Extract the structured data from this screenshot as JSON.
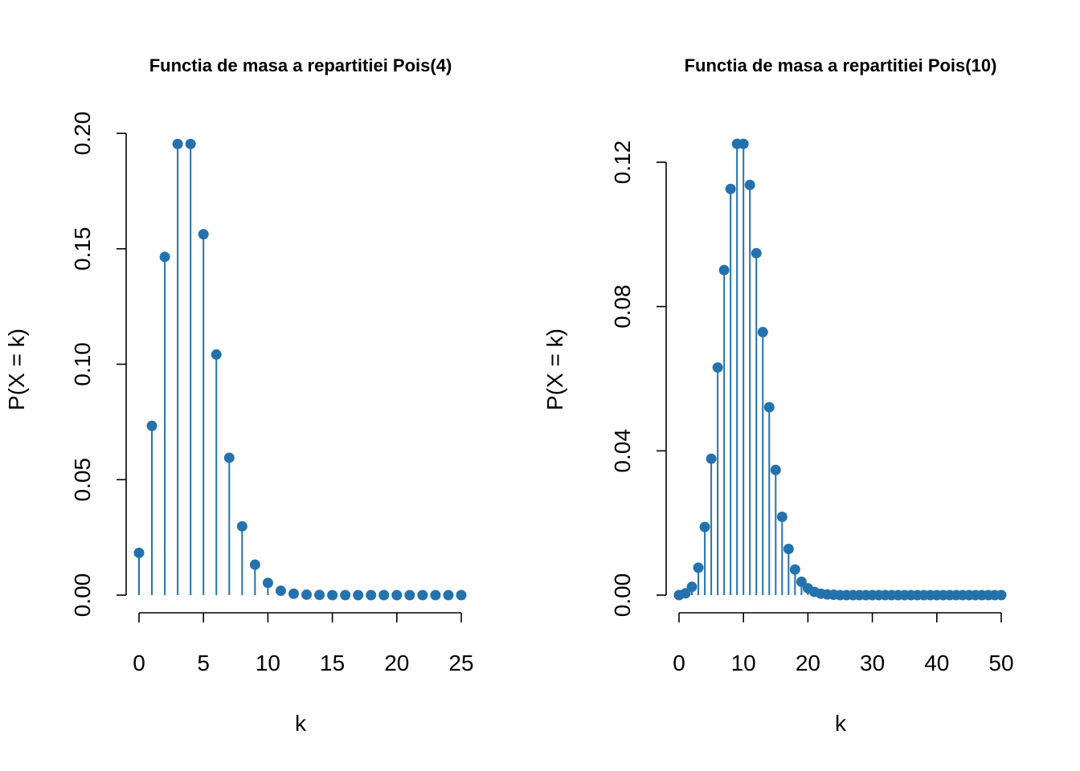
{
  "colors": {
    "series": "#2472ad",
    "axis": "#000000"
  },
  "chart_data": [
    {
      "type": "lollipop",
      "title": "Functia de masa a repartitiei Pois(4)",
      "xlabel": "k",
      "ylabel": "P(X = k)",
      "lambda": 4,
      "xlim": [
        0,
        25
      ],
      "ylim": [
        0,
        0.2
      ],
      "xticks": [
        "0",
        "5",
        "10",
        "15",
        "20",
        "25"
      ],
      "yticks": [
        "0.00",
        "0.05",
        "0.10",
        "0.15",
        "0.20"
      ],
      "x": [
        0,
        1,
        2,
        3,
        4,
        5,
        6,
        7,
        8,
        9,
        10,
        11,
        12,
        13,
        14,
        15,
        16,
        17,
        18,
        19,
        20,
        21,
        22,
        23,
        24,
        25
      ],
      "values": [
        0.0183,
        0.0733,
        0.1465,
        0.1954,
        0.1954,
        0.1563,
        0.1042,
        0.0595,
        0.0298,
        0.0132,
        0.0053,
        0.0019,
        0.0006,
        0.0002,
        0.0001,
        0,
        0,
        0,
        0,
        0,
        0,
        0,
        0,
        0,
        0,
        0
      ]
    },
    {
      "type": "lollipop",
      "title": "Functia de masa a repartitiei Pois(10)",
      "xlabel": "k",
      "ylabel": "P(X = k)",
      "lambda": 10,
      "xlim": [
        0,
        50
      ],
      "ylim": [
        0,
        0.12
      ],
      "xticks": [
        "0",
        "10",
        "20",
        "30",
        "40",
        "50"
      ],
      "yticks": [
        "0.00",
        "0.04",
        "0.08",
        "0.12"
      ],
      "x": [
        0,
        1,
        2,
        3,
        4,
        5,
        6,
        7,
        8,
        9,
        10,
        11,
        12,
        13,
        14,
        15,
        16,
        17,
        18,
        19,
        20,
        21,
        22,
        23,
        24,
        25,
        26,
        27,
        28,
        29,
        30,
        31,
        32,
        33,
        34,
        35,
        36,
        37,
        38,
        39,
        40,
        41,
        42,
        43,
        44,
        45,
        46,
        47,
        48,
        49,
        50
      ],
      "values": [
        0.0,
        0.0005,
        0.0023,
        0.0076,
        0.0189,
        0.0378,
        0.0631,
        0.0901,
        0.1126,
        0.1251,
        0.1251,
        0.1137,
        0.0948,
        0.0729,
        0.0521,
        0.0347,
        0.0217,
        0.0128,
        0.0071,
        0.0037,
        0.0019,
        0.0009,
        0.0004,
        0.0002,
        0.0001,
        0,
        0,
        0,
        0,
        0,
        0,
        0,
        0,
        0,
        0,
        0,
        0,
        0,
        0,
        0,
        0,
        0,
        0,
        0,
        0,
        0,
        0,
        0,
        0,
        0,
        0
      ]
    }
  ]
}
